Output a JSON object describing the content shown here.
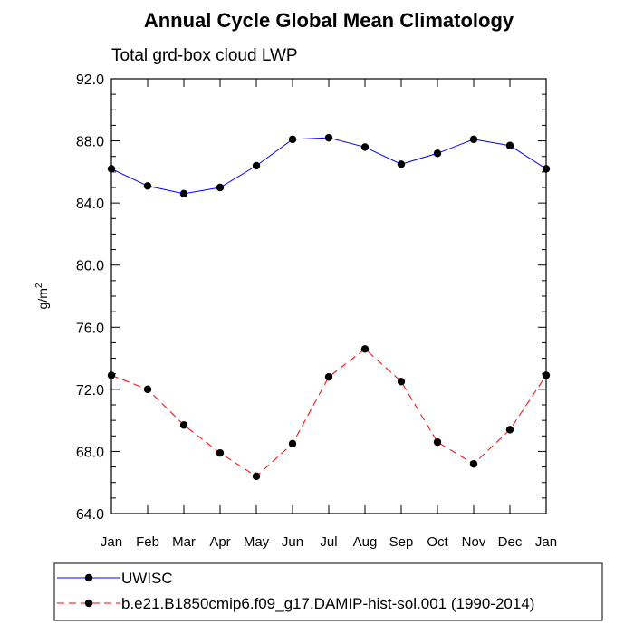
{
  "chart_data": {
    "type": "line",
    "title": "Annual Cycle Global Mean Climatology",
    "subtitle": "Total grd-box cloud LWP",
    "ylabel": "g/m",
    "ylabel_superscript": "2",
    "xlabel": "",
    "categories": [
      "Jan",
      "Feb",
      "Mar",
      "Apr",
      "May",
      "Jun",
      "Jul",
      "Aug",
      "Sep",
      "Oct",
      "Nov",
      "Dec",
      "Jan"
    ],
    "ylim": [
      64.0,
      92.0
    ],
    "yticks": [
      "64.0",
      "68.0",
      "72.0",
      "76.0",
      "80.0",
      "84.0",
      "88.0",
      "92.0"
    ],
    "grid": false,
    "legend_position": "bottom",
    "series": [
      {
        "name": "UWISC",
        "color": "#0000ff",
        "line_style": "solid",
        "marker": "filled-circle",
        "values": [
          86.2,
          85.1,
          84.6,
          85.0,
          86.4,
          88.1,
          88.2,
          87.6,
          86.5,
          87.2,
          88.1,
          87.7,
          86.2
        ]
      },
      {
        "name": "b.e21.B1850cmip6.f09_g17.DAMIP-hist-sol.001 (1990-2014)",
        "color": "#ff0000",
        "line_style": "dashed",
        "marker": "filled-circle",
        "values": [
          72.9,
          72.0,
          69.7,
          67.9,
          66.4,
          68.5,
          72.8,
          74.6,
          72.5,
          68.6,
          67.2,
          69.4,
          72.9
        ]
      }
    ]
  }
}
